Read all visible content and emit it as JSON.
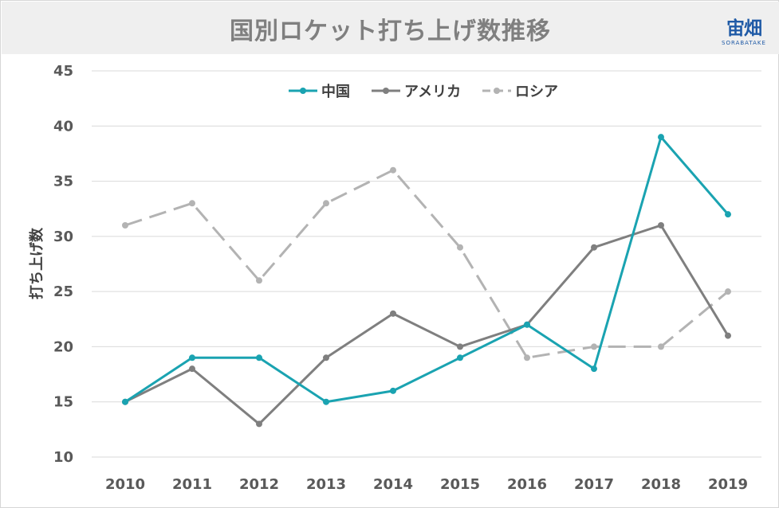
{
  "chart_data": {
    "type": "line",
    "title": "国別ロケット打ち上げ数推移",
    "xlabel": "",
    "ylabel": "打ち上げ数",
    "x": [
      "2010",
      "2011",
      "2012",
      "2013",
      "2014",
      "2015",
      "2016",
      "2017",
      "2018",
      "2019"
    ],
    "ylim": [
      10,
      45
    ],
    "yticks": [
      10,
      15,
      20,
      25,
      30,
      35,
      40,
      45
    ],
    "grid": true,
    "legend_position": "top-center",
    "series": [
      {
        "name": "中国",
        "color": "#1aa3b1",
        "dash": "solid",
        "values": [
          15,
          19,
          19,
          15,
          16,
          19,
          22,
          18,
          39,
          32
        ]
      },
      {
        "name": "アメリカ",
        "color": "#7f7f7f",
        "dash": "solid",
        "values": [
          15,
          18,
          13,
          19,
          23,
          20,
          22,
          29,
          31,
          21
        ]
      },
      {
        "name": "ロシア",
        "color": "#b3b3b3",
        "dash": "dashed",
        "values": [
          31,
          33,
          26,
          33,
          36,
          29,
          19,
          20,
          20,
          25
        ]
      }
    ]
  },
  "logo": {
    "main": "宙畑",
    "sub": "SORABATAKE"
  }
}
